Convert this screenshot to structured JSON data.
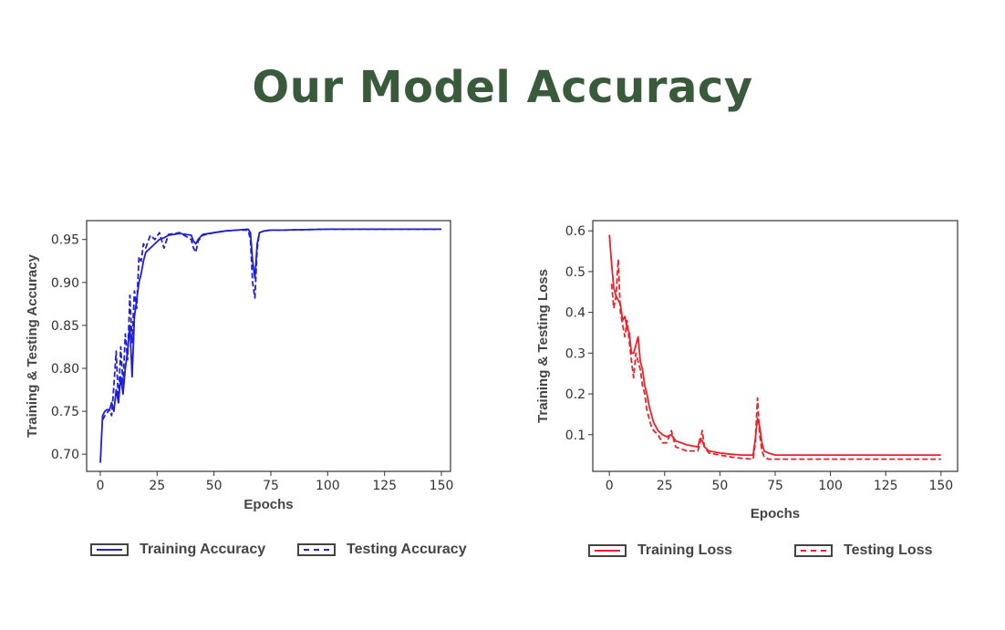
{
  "page": {
    "title": "Our Model Accuracy"
  },
  "legends": {
    "left": [
      {
        "label": "Training Accuracy",
        "style": "solid",
        "color": "#1f1fd6"
      },
      {
        "label": "Testing Accuracy",
        "style": "dashed",
        "color": "#1f1fd6"
      }
    ],
    "right": [
      {
        "label": "Training Loss",
        "style": "solid",
        "color": "#e8232a"
      },
      {
        "label": "Testing Loss",
        "style": "dashed",
        "color": "#e8232a"
      }
    ]
  },
  "chart_data": [
    {
      "type": "line",
      "xlabel": "Epochs",
      "ylabel": "Training & Testing Accuracy",
      "xlim": [
        -6,
        154
      ],
      "ylim": [
        0.68,
        0.972
      ],
      "xticks": [
        0,
        25,
        50,
        75,
        100,
        125,
        150
      ],
      "yticks": [
        0.7,
        0.75,
        0.8,
        0.85,
        0.9,
        0.95
      ],
      "ytick_labels": [
        "0.70",
        "0.75",
        "0.80",
        "0.85",
        "0.90",
        "0.95"
      ],
      "color": "#1f1fd6",
      "series": [
        {
          "style": "solid",
          "x": [
            0,
            1,
            2,
            3,
            4,
            5,
            6,
            7,
            8,
            9,
            10,
            11,
            12,
            13,
            14,
            15,
            16,
            17,
            18,
            19,
            20,
            22,
            24,
            26,
            28,
            30,
            35,
            40,
            41,
            42,
            43,
            45,
            50,
            55,
            60,
            65,
            66,
            67,
            68,
            69,
            70,
            72,
            75,
            80,
            100,
            125,
            150
          ],
          "y": [
            0.69,
            0.745,
            0.75,
            0.752,
            0.751,
            0.76,
            0.75,
            0.775,
            0.76,
            0.79,
            0.77,
            0.8,
            0.82,
            0.85,
            0.79,
            0.86,
            0.88,
            0.9,
            0.91,
            0.925,
            0.935,
            0.94,
            0.945,
            0.95,
            0.952,
            0.955,
            0.957,
            0.955,
            0.948,
            0.945,
            0.95,
            0.956,
            0.958,
            0.96,
            0.961,
            0.962,
            0.958,
            0.925,
            0.905,
            0.945,
            0.958,
            0.96,
            0.961,
            0.961,
            0.962,
            0.962,
            0.962
          ]
        },
        {
          "style": "dashed",
          "x": [
            1,
            2,
            3,
            4,
            5,
            6,
            7,
            8,
            9,
            10,
            11,
            12,
            13,
            14,
            15,
            16,
            17,
            18,
            19,
            20,
            22,
            24,
            26,
            28,
            30,
            35,
            40,
            41,
            42,
            43,
            45,
            50,
            55,
            60,
            65,
            66,
            67,
            68,
            69,
            70,
            72,
            75,
            80,
            100,
            125,
            150
          ],
          "y": [
            0.74,
            0.745,
            0.748,
            0.752,
            0.745,
            0.78,
            0.82,
            0.76,
            0.825,
            0.78,
            0.84,
            0.81,
            0.885,
            0.83,
            0.89,
            0.87,
            0.93,
            0.925,
            0.945,
            0.94,
            0.955,
            0.95,
            0.958,
            0.94,
            0.956,
            0.958,
            0.95,
            0.94,
            0.935,
            0.948,
            0.955,
            0.958,
            0.96,
            0.961,
            0.961,
            0.95,
            0.9,
            0.882,
            0.94,
            0.958,
            0.96,
            0.961,
            0.961,
            0.962,
            0.962,
            0.962
          ]
        }
      ]
    },
    {
      "type": "line",
      "xlabel": "Epochs",
      "ylabel": "Training & Testing Loss",
      "xlim": [
        -7.5,
        157.5
      ],
      "ylim": [
        0.01,
        0.625
      ],
      "xticks": [
        0,
        25,
        50,
        75,
        100,
        125,
        150
      ],
      "yticks": [
        0.1,
        0.2,
        0.3,
        0.4,
        0.5,
        0.6
      ],
      "ytick_labels": [
        "0.1",
        "0.2",
        "0.3",
        "0.4",
        "0.5",
        "0.6"
      ],
      "color": "#e8232a",
      "series": [
        {
          "style": "solid",
          "x": [
            0,
            1,
            2,
            3,
            4,
            5,
            6,
            7,
            8,
            9,
            10,
            11,
            12,
            13,
            14,
            15,
            16,
            17,
            18,
            19,
            20,
            22,
            24,
            26,
            28,
            30,
            35,
            40,
            41,
            42,
            43,
            45,
            50,
            55,
            60,
            65,
            66,
            67,
            68,
            69,
            70,
            72,
            75,
            80,
            100,
            125,
            150
          ],
          "y": [
            0.59,
            0.52,
            0.46,
            0.44,
            0.43,
            0.42,
            0.38,
            0.39,
            0.36,
            0.35,
            0.3,
            0.3,
            0.32,
            0.34,
            0.28,
            0.26,
            0.22,
            0.2,
            0.17,
            0.15,
            0.13,
            0.11,
            0.1,
            0.095,
            0.1,
            0.085,
            0.075,
            0.07,
            0.09,
            0.085,
            0.07,
            0.06,
            0.055,
            0.052,
            0.05,
            0.05,
            0.09,
            0.14,
            0.12,
            0.08,
            0.06,
            0.055,
            0.05,
            0.05,
            0.05,
            0.05,
            0.05
          ]
        },
        {
          "style": "dashed",
          "x": [
            1,
            2,
            3,
            4,
            5,
            6,
            7,
            8,
            9,
            10,
            11,
            12,
            13,
            14,
            15,
            16,
            17,
            18,
            19,
            20,
            22,
            24,
            26,
            28,
            30,
            35,
            40,
            41,
            42,
            43,
            45,
            50,
            55,
            60,
            65,
            66,
            67,
            68,
            69,
            70,
            72,
            75,
            80,
            100,
            125,
            150
          ],
          "y": [
            0.47,
            0.41,
            0.44,
            0.53,
            0.4,
            0.37,
            0.34,
            0.38,
            0.33,
            0.28,
            0.24,
            0.3,
            0.28,
            0.26,
            0.22,
            0.2,
            0.16,
            0.14,
            0.12,
            0.11,
            0.1,
            0.08,
            0.08,
            0.11,
            0.07,
            0.06,
            0.06,
            0.08,
            0.11,
            0.07,
            0.055,
            0.05,
            0.045,
            0.042,
            0.04,
            0.08,
            0.19,
            0.1,
            0.06,
            0.045,
            0.04,
            0.04,
            0.04,
            0.04,
            0.04,
            0.04
          ]
        }
      ]
    }
  ]
}
